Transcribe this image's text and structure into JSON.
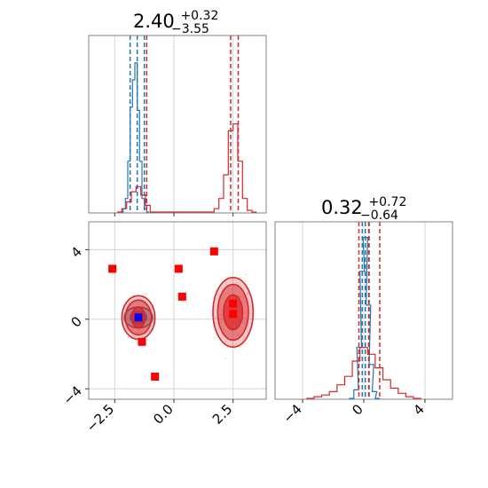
{
  "colors": {
    "series_a": "#1f77b4",
    "series_b": "#d62728",
    "marker": "#ff0000",
    "blue_marker": "#0000ff",
    "frame": "#808080",
    "grid": "#cfcfcf"
  },
  "titles": {
    "p0_main": "2.40",
    "p0_plus": "+0.32",
    "p0_minus": "−3.55",
    "p1_main": "0.32",
    "p1_plus": "+0.72",
    "p1_minus": "−0.64"
  },
  "chart_data": [
    {
      "type": "histogram",
      "panel": "marginal-param-1",
      "title": "2.40 +0.32 −3.55",
      "xlim": [
        -3.6,
        3.9
      ],
      "grid": true,
      "series": [
        {
          "color": "#1f77b4",
          "bins": [
            [
              -2.2,
              0.0
            ],
            [
              -2.1,
              0.02
            ],
            [
              -2.0,
              0.08
            ],
            [
              -1.9,
              0.3
            ],
            [
              -1.8,
              0.62
            ],
            [
              -1.7,
              0.78
            ],
            [
              -1.6,
              0.88
            ],
            [
              -1.5,
              0.6
            ],
            [
              -1.4,
              0.3
            ],
            [
              -1.3,
              0.08
            ],
            [
              -1.2,
              0.02
            ],
            [
              -1.1,
              0.0
            ]
          ],
          "quantiles": [
            -1.85,
            -1.55,
            -1.25
          ]
        },
        {
          "color": "#d62728",
          "bins": [
            [
              -2.3,
              0.0
            ],
            [
              -2.1,
              0.02
            ],
            [
              -1.9,
              0.06
            ],
            [
              -1.7,
              0.12
            ],
            [
              -1.5,
              0.15
            ],
            [
              -1.3,
              0.1
            ],
            [
              -1.1,
              0.04
            ],
            [
              -0.9,
              0.0
            ],
            [
              1.6,
              0.0
            ],
            [
              1.8,
              0.02
            ],
            [
              2.0,
              0.08
            ],
            [
              2.2,
              0.22
            ],
            [
              2.4,
              0.48
            ],
            [
              2.6,
              0.52
            ],
            [
              2.8,
              0.3
            ],
            [
              3.0,
              0.08
            ],
            [
              3.2,
              0.01
            ],
            [
              3.4,
              0.0
            ]
          ],
          "quantiles": [
            -1.15,
            2.4,
            2.72
          ]
        }
      ]
    },
    {
      "type": "scatter",
      "panel": "joint-param-1-param-2",
      "xlim": [
        -3.6,
        3.9
      ],
      "ylim": [
        -4.6,
        5.6
      ],
      "xticks": [
        "−2.5",
        "0.0",
        "2.5"
      ],
      "yticks": [
        "4",
        "0",
        "−4"
      ],
      "grid": true,
      "red_markers": [
        [
          -2.6,
          2.9
        ],
        [
          -1.35,
          -1.3
        ],
        [
          -0.8,
          -3.3
        ],
        [
          0.2,
          2.9
        ],
        [
          0.35,
          1.3
        ],
        [
          1.7,
          3.9
        ],
        [
          2.5,
          0.9
        ],
        [
          2.5,
          0.3
        ]
      ],
      "blue_marker": [
        -1.5,
        0.1
      ],
      "contours": [
        {
          "color": "#1f77b4",
          "center": [
            -1.5,
            0.1
          ],
          "rx": [
            0.35,
            0.6
          ],
          "ry": [
            0.35,
            0.6
          ]
        },
        {
          "color": "#d62728",
          "center": [
            -1.5,
            0.1
          ],
          "rx": [
            0.28,
            0.55,
            0.7
          ],
          "ry": [
            0.6,
            1.0,
            1.25
          ]
        },
        {
          "color": "#d62728",
          "center": [
            2.5,
            0.4
          ],
          "rx": [
            0.4,
            0.65,
            0.85
          ],
          "ry": [
            1.0,
            1.6,
            2.0
          ]
        }
      ]
    },
    {
      "type": "histogram",
      "panel": "marginal-param-2",
      "title": "0.32 +0.72 −0.64",
      "xlim": [
        -5.8,
        5.8
      ],
      "xticks": [
        "−4",
        "0",
        "4"
      ],
      "grid": true,
      "series": [
        {
          "color": "#1f77b4",
          "bins": [
            [
              -0.8,
              0.0
            ],
            [
              -0.5,
              0.05
            ],
            [
              -0.3,
              0.3
            ],
            [
              -0.1,
              0.75
            ],
            [
              0.1,
              0.95
            ],
            [
              0.3,
              0.55
            ],
            [
              0.5,
              0.2
            ],
            [
              0.7,
              0.04
            ],
            [
              0.9,
              0.0
            ]
          ],
          "quantiles": [
            -0.1,
            0.1,
            0.35
          ]
        },
        {
          "color": "#d62728",
          "bins": [
            [
              -3.5,
              0.0
            ],
            [
              -3.0,
              0.01
            ],
            [
              -2.5,
              0.02
            ],
            [
              -2.0,
              0.04
            ],
            [
              -1.5,
              0.08
            ],
            [
              -1.0,
              0.13
            ],
            [
              -0.5,
              0.22
            ],
            [
              0.0,
              0.3
            ],
            [
              0.5,
              0.26
            ],
            [
              1.0,
              0.18
            ],
            [
              1.5,
              0.11
            ],
            [
              2.0,
              0.06
            ],
            [
              2.5,
              0.03
            ],
            [
              3.0,
              0.01
            ],
            [
              3.5,
              0.0
            ]
          ],
          "quantiles": [
            -0.32,
            0.32,
            1.04
          ]
        }
      ]
    }
  ]
}
